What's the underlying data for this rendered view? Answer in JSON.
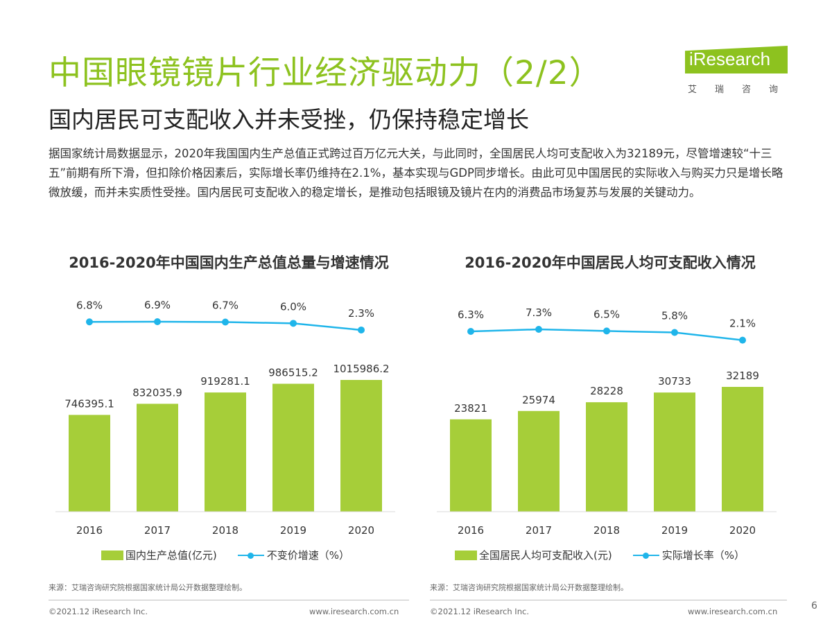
{
  "header": {
    "title": "中国眼镜镜片行业经济驱动力（2/2）",
    "subtitle": "国内居民可支配收入并未受挫，仍保持稳定增长",
    "body": "据国家统计局数据显示，2020年我国国内生产总值正式跨过百万亿元大关，与此同时，全国居民人均可支配收入为32189元，尽管增速较“十三五”前期有所下滑，但扣除价格因素后，实际增长率仍维持在2.1%，基本实现与GDP同步增长。由此可见中国居民的实际收入与购买力只是增长略微放缓，而并未实质性受挫。国内居民可支配收入的稳定增长，是推动包括眼镜及镜片在内的消费品市场复苏与发展的关键动力。"
  },
  "logo": {
    "text": "iResearch",
    "cn": "艾瑞咨询"
  },
  "colors": {
    "title_green": "#8dc21f",
    "bar_green": "#a6ce39",
    "line_blue": "#1fb5ea"
  },
  "chart_data": [
    {
      "type": "bar",
      "title": "2016-2020年中国国内生产总值总量与增速情况",
      "categories": [
        "2016",
        "2017",
        "2018",
        "2019",
        "2020"
      ],
      "series": [
        {
          "name": "国内生产总值(亿元)",
          "type": "bar",
          "values": [
            746395.1,
            832035.9,
            919281.1,
            986515.2,
            1015986.2
          ],
          "labels": [
            "746395.1",
            "832035.9",
            "919281.1",
            "986515.2",
            "1015986.2"
          ]
        },
        {
          "name": "不变价增速（%）",
          "type": "line",
          "values": [
            6.8,
            6.9,
            6.7,
            6.0,
            2.3
          ],
          "labels": [
            "6.8%",
            "6.9%",
            "6.7%",
            "6.0%",
            "2.3%"
          ]
        }
      ],
      "source": "来源：艾瑞咨询研究院根据国家统计局公开数据整理绘制。"
    },
    {
      "type": "bar",
      "title": "2016-2020年中国居民人均可支配收入情况",
      "categories": [
        "2016",
        "2017",
        "2018",
        "2019",
        "2020"
      ],
      "series": [
        {
          "name": "全国居民人均可支配收入(元)",
          "type": "bar",
          "values": [
            23821,
            25974,
            28228,
            30733,
            32189
          ],
          "labels": [
            "23821",
            "25974",
            "28228",
            "30733",
            "32189"
          ]
        },
        {
          "name": "实际增长率（%）",
          "type": "line",
          "values": [
            6.3,
            7.3,
            6.5,
            5.8,
            2.1
          ],
          "labels": [
            "6.3%",
            "7.3%",
            "6.5%",
            "5.8%",
            "2.1%"
          ]
        }
      ],
      "source": "来源：艾瑞咨询研究院根据国家统计局公开数据整理绘制。"
    }
  ],
  "footer": {
    "left_copyright": "©2021.12 iResearch Inc.",
    "left_url": "www.iresearch.com.cn",
    "right_copyright": "©2021.12 iResearch Inc.",
    "right_url": "www.iresearch.com.cn",
    "page": "6"
  }
}
